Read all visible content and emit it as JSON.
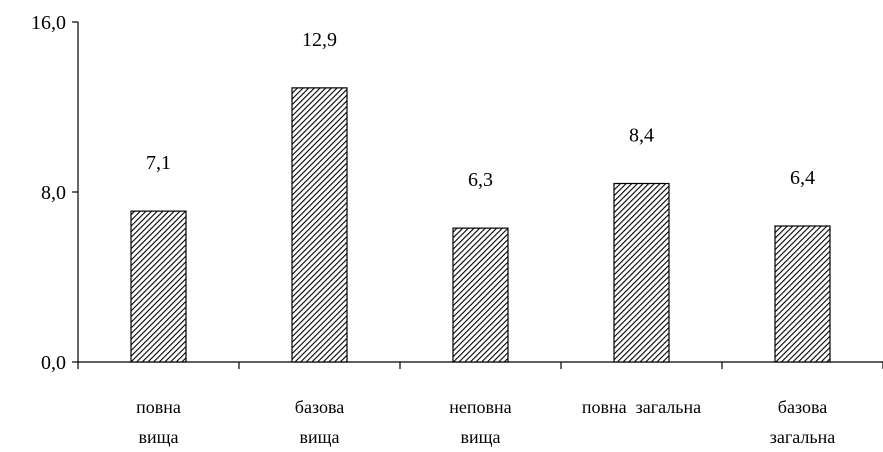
{
  "chart_data": {
    "type": "bar",
    "title": "",
    "xlabel": "",
    "ylabel": "",
    "categories": [
      [
        "повна",
        "вища"
      ],
      [
        "базова",
        "вища"
      ],
      [
        "неповна",
        "вища"
      ],
      [
        "повна  загальна"
      ],
      [
        "базова",
        "загальна"
      ]
    ],
    "values": [
      7.1,
      12.9,
      6.3,
      8.4,
      6.4
    ],
    "value_labels": [
      "7,1",
      "12,9",
      "6,3",
      "8,4",
      "6,4"
    ],
    "ylim": [
      0,
      16
    ],
    "yticks": [
      0,
      8,
      16
    ],
    "ytick_labels": [
      "0,0",
      "8,0",
      "16,0"
    ],
    "grid": false,
    "legend": "none",
    "bar_fill": "diagonal-hatch",
    "colors": {
      "bar_stroke": "#000000",
      "hatch": "#000000",
      "background": "#ffffff"
    }
  }
}
